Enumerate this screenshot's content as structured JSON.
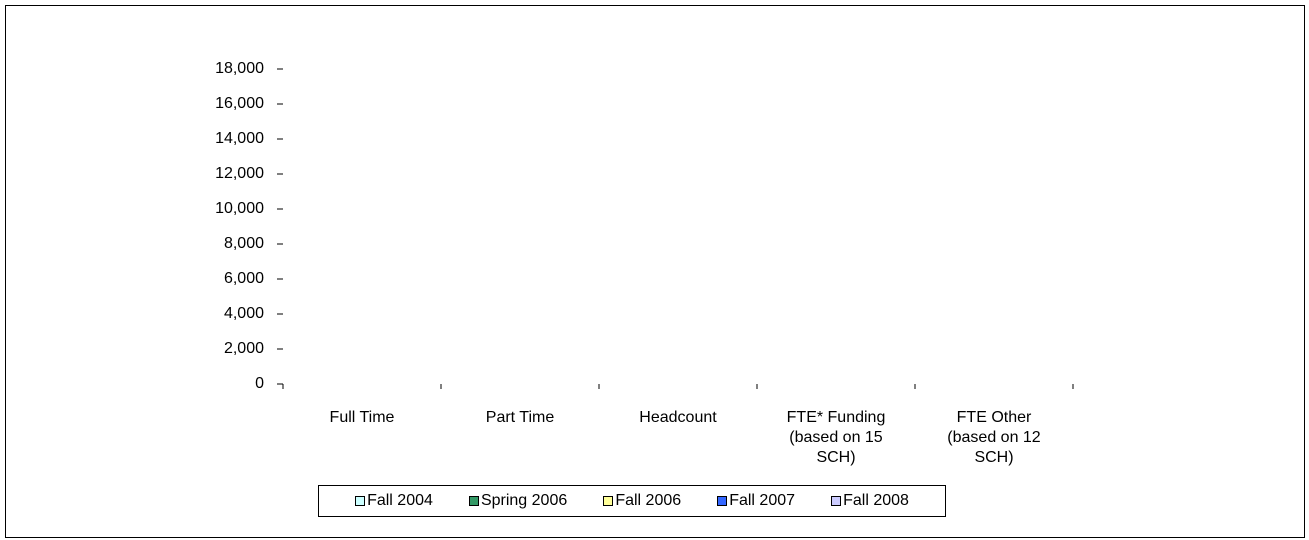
{
  "chart_data": {
    "type": "bar",
    "categories": [
      "Full Time",
      "Part Time",
      "Headcount",
      "FTE* Funding (based on 15 SCH)",
      "FTE Other (based on 12 SCH)"
    ],
    "series": [
      {
        "name": "Fall 2004",
        "color": "#ccffff",
        "values": [
          null,
          null,
          null,
          null,
          null
        ]
      },
      {
        "name": "Spring 2006",
        "color": "#339966",
        "values": [
          null,
          null,
          null,
          null,
          null
        ]
      },
      {
        "name": "Fall 2006",
        "color": "#ffff99",
        "values": [
          null,
          null,
          null,
          null,
          null
        ]
      },
      {
        "name": "Fall 2007",
        "color": "#3366ff",
        "values": [
          null,
          null,
          null,
          null,
          null
        ]
      },
      {
        "name": "Fall 2008",
        "color": "#ccccff",
        "values": [
          null,
          null,
          null,
          null,
          null
        ]
      }
    ],
    "ylim": [
      0,
      18000
    ],
    "yticks": [
      0,
      {
        "value": 2000,
        "label": "2,000"
      },
      {
        "value": 4000,
        "label": "4,000"
      },
      {
        "value": 6000,
        "label": "6,000"
      },
      {
        "value": 8000,
        "label": "8,000"
      },
      {
        "value": 10000,
        "label": "10,000"
      },
      {
        "value": 12000,
        "label": "12,000"
      },
      {
        "value": 14000,
        "label": "14,000"
      },
      {
        "value": 16000,
        "label": "16,000"
      },
      {
        "value": 18000,
        "label": "18,000"
      }
    ],
    "legend": "bottom"
  }
}
